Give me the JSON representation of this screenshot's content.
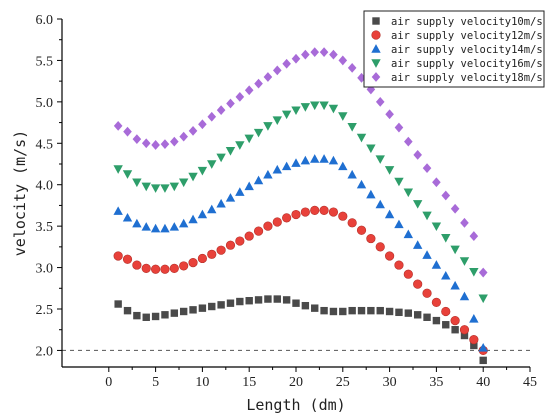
{
  "chart_data": {
    "type": "scatter",
    "xlabel": "Length (dm)",
    "ylabel": "velocity (m/s)",
    "xlim": [
      -5,
      45
    ],
    "ylim": [
      1.8,
      6.0
    ],
    "xticks": [
      0,
      5,
      10,
      15,
      20,
      25,
      30,
      35,
      40,
      45
    ],
    "yticks": [
      "2.0",
      "2.5",
      "3.0",
      "3.5",
      "4.0",
      "4.5",
      "5.0",
      "5.5",
      "6.0"
    ],
    "legend_position": "top-right",
    "reference_line": {
      "y": 2.0,
      "style": "dashed"
    },
    "x": [
      1,
      2,
      3,
      4,
      5,
      6,
      7,
      8,
      9,
      10,
      11,
      12,
      13,
      14,
      15,
      16,
      17,
      18,
      19,
      20,
      21,
      22,
      23,
      24,
      25,
      26,
      27,
      28,
      29,
      30,
      31,
      32,
      33,
      34,
      35,
      36,
      37,
      38,
      39,
      40
    ],
    "series": [
      {
        "name": "air supply velocity10m/s",
        "marker": "square",
        "color": "#4a4a4a",
        "values": [
          2.56,
          2.48,
          2.42,
          2.4,
          2.41,
          2.43,
          2.45,
          2.47,
          2.49,
          2.51,
          2.53,
          2.55,
          2.57,
          2.59,
          2.6,
          2.61,
          2.62,
          2.62,
          2.61,
          2.57,
          2.54,
          2.51,
          2.48,
          2.47,
          2.47,
          2.48,
          2.48,
          2.48,
          2.48,
          2.47,
          2.46,
          2.45,
          2.43,
          2.4,
          2.36,
          2.31,
          2.25,
          2.18,
          2.06,
          1.88
        ]
      },
      {
        "name": "air supply velocity12m/s",
        "marker": "circle",
        "color": "#e8413a",
        "values": [
          3.14,
          3.1,
          3.03,
          2.99,
          2.98,
          2.98,
          2.99,
          3.02,
          3.06,
          3.11,
          3.16,
          3.21,
          3.27,
          3.32,
          3.38,
          3.44,
          3.5,
          3.55,
          3.6,
          3.64,
          3.67,
          3.69,
          3.69,
          3.67,
          3.62,
          3.54,
          3.45,
          3.35,
          3.25,
          3.14,
          3.03,
          2.92,
          2.8,
          2.69,
          2.58,
          2.47,
          2.36,
          2.25,
          2.13,
          2.0
        ]
      },
      {
        "name": "air supply velocity14m/s",
        "marker": "triangle-up",
        "color": "#1f6fd1",
        "values": [
          3.68,
          3.6,
          3.53,
          3.49,
          3.47,
          3.47,
          3.49,
          3.53,
          3.58,
          3.64,
          3.7,
          3.77,
          3.84,
          3.91,
          3.98,
          4.05,
          4.12,
          4.18,
          4.22,
          4.26,
          4.29,
          4.31,
          4.31,
          4.29,
          4.22,
          4.12,
          4.0,
          3.88,
          3.76,
          3.64,
          3.52,
          3.4,
          3.27,
          3.15,
          3.03,
          2.9,
          2.78,
          2.65,
          2.38,
          2.03
        ]
      },
      {
        "name": "air supply velocity16m/s",
        "marker": "triangle-down",
        "color": "#2e9e6a",
        "values": [
          4.19,
          4.13,
          4.03,
          3.98,
          3.96,
          3.96,
          3.98,
          4.03,
          4.1,
          4.17,
          4.25,
          4.33,
          4.41,
          4.48,
          4.56,
          4.63,
          4.71,
          4.78,
          4.85,
          4.9,
          4.94,
          4.96,
          4.96,
          4.92,
          4.83,
          4.7,
          4.57,
          4.44,
          4.31,
          4.18,
          4.04,
          3.91,
          3.77,
          3.63,
          3.5,
          3.36,
          3.22,
          3.08,
          2.95,
          2.63
        ]
      },
      {
        "name": "air supply velocity18m/s",
        "marker": "diamond",
        "color": "#a86bd8",
        "values": [
          4.71,
          4.64,
          4.55,
          4.5,
          4.48,
          4.49,
          4.52,
          4.58,
          4.65,
          4.73,
          4.82,
          4.9,
          4.98,
          5.06,
          5.14,
          5.22,
          5.3,
          5.38,
          5.46,
          5.52,
          5.57,
          5.6,
          5.6,
          5.57,
          5.5,
          5.41,
          5.29,
          5.15,
          5.0,
          4.85,
          4.69,
          4.52,
          4.36,
          4.2,
          4.03,
          3.87,
          3.71,
          3.54,
          3.38,
          2.94
        ]
      }
    ]
  }
}
